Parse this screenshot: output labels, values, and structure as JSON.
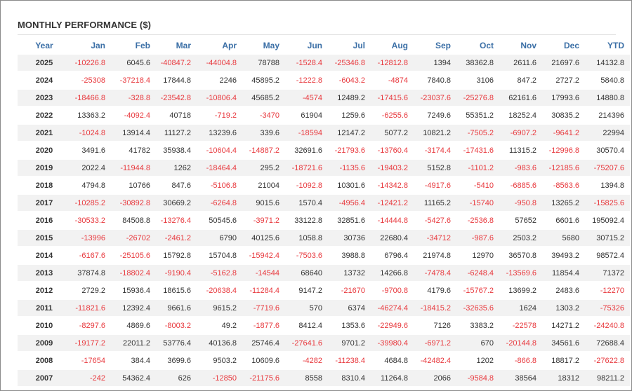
{
  "title": "MONTHLY PERFORMANCE ($)",
  "columns": [
    "Year",
    "Jan",
    "Feb",
    "Mar",
    "Apr",
    "May",
    "Jun",
    "Jul",
    "Aug",
    "Sep",
    "Oct",
    "Nov",
    "Dec",
    "YTD"
  ],
  "colors": {
    "header": "#3b6fa6",
    "negative": "#e8383d",
    "positive": "#333333",
    "stripe": "#f2f2f2"
  },
  "rows": [
    [
      "2025",
      "-10226.8",
      "6045.6",
      "-40847.2",
      "-44004.8",
      "78788",
      "-1528.4",
      "-25346.8",
      "-12812.8",
      "1394",
      "38362.8",
      "2611.6",
      "21697.6",
      "14132.8"
    ],
    [
      "2024",
      "-25308",
      "-37218.4",
      "17844.8",
      "2246",
      "45895.2",
      "-1222.8",
      "-6043.2",
      "-4874",
      "7840.8",
      "3106",
      "847.2",
      "2727.2",
      "5840.8"
    ],
    [
      "2023",
      "-18466.8",
      "-328.8",
      "-23542.8",
      "-10806.4",
      "45685.2",
      "-4574",
      "12489.2",
      "-17415.6",
      "-23037.6",
      "-25276.8",
      "62161.6",
      "17993.6",
      "14880.8"
    ],
    [
      "2022",
      "13363.2",
      "-4092.4",
      "40718",
      "-719.2",
      "-3470",
      "61904",
      "1259.6",
      "-6255.6",
      "7249.6",
      "55351.2",
      "18252.4",
      "30835.2",
      "214396"
    ],
    [
      "2021",
      "-1024.8",
      "13914.4",
      "11127.2",
      "13239.6",
      "339.6",
      "-18594",
      "12147.2",
      "5077.2",
      "10821.2",
      "-7505.2",
      "-6907.2",
      "-9641.2",
      "22994"
    ],
    [
      "2020",
      "3491.6",
      "41782",
      "35938.4",
      "-10604.4",
      "-14887.2",
      "32691.6",
      "-21793.6",
      "-13760.4",
      "-3174.4",
      "-17431.6",
      "11315.2",
      "-12996.8",
      "30570.4"
    ],
    [
      "2019",
      "2022.4",
      "-11944.8",
      "1262",
      "-18464.4",
      "295.2",
      "-18721.6",
      "-1135.6",
      "-19403.2",
      "5152.8",
      "-1101.2",
      "-983.6",
      "-12185.6",
      "-75207.6"
    ],
    [
      "2018",
      "4794.8",
      "10766",
      "847.6",
      "-5106.8",
      "21004",
      "-1092.8",
      "10301.6",
      "-14342.8",
      "-4917.6",
      "-5410",
      "-6885.6",
      "-8563.6",
      "1394.8"
    ],
    [
      "2017",
      "-10285.2",
      "-30892.8",
      "30669.2",
      "-6264.8",
      "9015.6",
      "1570.4",
      "-4956.4",
      "-12421.2",
      "11165.2",
      "-15740",
      "-950.8",
      "13265.2",
      "-15825.6"
    ],
    [
      "2016",
      "-30533.2",
      "84508.8",
      "-13276.4",
      "50545.6",
      "-3971.2",
      "33122.8",
      "32851.6",
      "-14444.8",
      "-5427.6",
      "-2536.8",
      "57652",
      "6601.6",
      "195092.4"
    ],
    [
      "2015",
      "-13996",
      "-26702",
      "-2461.2",
      "6790",
      "40125.6",
      "1058.8",
      "30736",
      "22680.4",
      "-34712",
      "-987.6",
      "2503.2",
      "5680",
      "30715.2"
    ],
    [
      "2014",
      "-6167.6",
      "-25105.6",
      "15792.8",
      "15704.8",
      "-15942.4",
      "-7503.6",
      "3988.8",
      "6796.4",
      "21974.8",
      "12970",
      "36570.8",
      "39493.2",
      "98572.4"
    ],
    [
      "2013",
      "37874.8",
      "-18802.4",
      "-9190.4",
      "-5162.8",
      "-14544",
      "68640",
      "13732",
      "14266.8",
      "-7478.4",
      "-6248.4",
      "-13569.6",
      "11854.4",
      "71372"
    ],
    [
      "2012",
      "2729.2",
      "15936.4",
      "18615.6",
      "-20638.4",
      "-11284.4",
      "9147.2",
      "-21670",
      "-9700.8",
      "4179.6",
      "-15767.2",
      "13699.2",
      "2483.6",
      "-12270"
    ],
    [
      "2011",
      "-11821.6",
      "12392.4",
      "9661.6",
      "9615.2",
      "-7719.6",
      "570",
      "6374",
      "-46274.4",
      "-18415.2",
      "-32635.6",
      "1624",
      "1303.2",
      "-75326"
    ],
    [
      "2010",
      "-8297.6",
      "4869.6",
      "-8003.2",
      "49.2",
      "-1877.6",
      "8412.4",
      "1353.6",
      "-22949.6",
      "7126",
      "3383.2",
      "-22578",
      "14271.2",
      "-24240.8"
    ],
    [
      "2009",
      "-19177.2",
      "22011.2",
      "53776.4",
      "40136.8",
      "25746.4",
      "-27641.6",
      "9701.2",
      "-39980.4",
      "-6971.2",
      "670",
      "-20144.8",
      "34561.6",
      "72688.4"
    ],
    [
      "2008",
      "-17654",
      "384.4",
      "3699.6",
      "9503.2",
      "10609.6",
      "-4282",
      "-11238.4",
      "4684.8",
      "-42482.4",
      "1202",
      "-866.8",
      "18817.2",
      "-27622.8"
    ],
    [
      "2007",
      "-242",
      "54362.4",
      "626",
      "-12850",
      "-21175.6",
      "8558",
      "8310.4",
      "11264.8",
      "2066",
      "-9584.8",
      "38564",
      "18312",
      "98211.2"
    ]
  ]
}
